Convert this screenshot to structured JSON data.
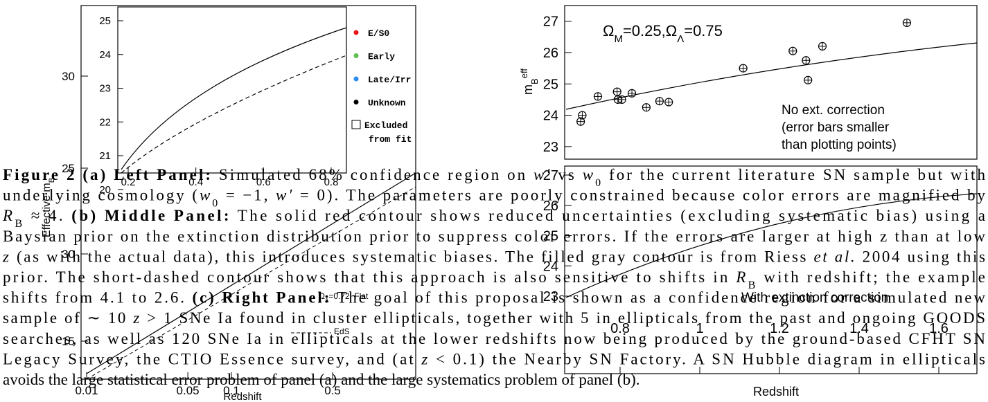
{
  "left_panel": {
    "type": "scatter",
    "y_label": [
      {
        "t": "Effective m"
      },
      {
        "t": "B",
        "sub": true
      }
    ],
    "x_label": "Redshift",
    "xticks": [
      0.01,
      0.05,
      0.1,
      0.5
    ],
    "xscale": "log",
    "yticks": [
      30,
      25
    ],
    "lower_yticks": [
      30,
      15
    ],
    "annotations": [
      [
        {
          "t": "Ω"
        },
        {
          "t": "Λ",
          "sub": true
        },
        {
          "t": "=0.72, Flat"
        }
      ],
      [
        {
          "t": "EdS"
        }
      ]
    ],
    "inset": {
      "xticks": [
        0.2,
        0.4,
        0.6,
        0.8
      ],
      "yticks": [
        25,
        24,
        23,
        22,
        21,
        20
      ],
      "legend": [
        {
          "name": "E/S0",
          "color": "#e8141c"
        },
        {
          "name": "Early",
          "color": "#5dbf4c"
        },
        {
          "name": "Late/Irr",
          "color": "#2a8cf0"
        },
        {
          "name": "Unknown",
          "color": "#000000"
        }
      ],
      "excluded": [
        "Excluded",
        "from fit"
      ]
    }
  },
  "right_top": {
    "type": "scatter",
    "title": [
      {
        "t": "Ω"
      },
      {
        "t": "M",
        "sub": true
      },
      {
        "t": "=0.25,Ω"
      },
      {
        "t": "Λ",
        "sub": true
      },
      {
        "t": "=0.75"
      }
    ],
    "y_label": [
      {
        "t": "m"
      },
      {
        "t": "B",
        "sub": true
      },
      {
        "t": "eff",
        "sup": true
      }
    ],
    "yticks": [
      27,
      26,
      25,
      24,
      23
    ],
    "ylim": [
      22.6,
      27.5
    ],
    "xlim": [
      0.7,
      1.73
    ],
    "note": [
      "No ext. correction",
      "(error bars smaller",
      "than plotting points)"
    ],
    "x": [
      0.74,
      0.744,
      0.783,
      0.831,
      0.833,
      0.843,
      0.868,
      0.904,
      0.937,
      0.96,
      1.146,
      1.27,
      1.303,
      1.308,
      1.344,
      1.555
    ],
    "values": [
      23.8,
      24.0,
      24.6,
      24.75,
      24.5,
      24.5,
      24.7,
      24.25,
      24.45,
      24.42,
      25.5,
      26.05,
      25.75,
      25.12,
      26.2,
      26.95
    ]
  },
  "right_bottom": {
    "type": "scatter",
    "yticks": [
      27,
      26,
      25,
      24,
      23
    ],
    "xticks": [
      0.8,
      1.0,
      1.2,
      1.4,
      1.6
    ],
    "x_label": "Redshift",
    "note": "With extinction correction"
  },
  "caption": [
    [
      {
        "t": "Figure 2 (a) Left Panel:",
        "b": true
      },
      {
        "t": " Simulated 68% confidence region on "
      },
      {
        "t": "w′",
        "i": true
      },
      {
        "t": " vs "
      },
      {
        "t": "w",
        "i": true
      },
      {
        "t": "0",
        "sub": true
      },
      {
        "t": " for the current literature SN sample but with"
      }
    ],
    [
      {
        "t": "underlying cosmology ("
      },
      {
        "t": "w",
        "i": true
      },
      {
        "t": "0",
        "sub": true
      },
      {
        "t": " = −1, "
      },
      {
        "t": "w′",
        "i": true
      },
      {
        "t": " = 0). The parameters are poorly constrained because color errors are magnified by"
      }
    ],
    [
      {
        "t": "R",
        "i": true
      },
      {
        "t": "B",
        "sub": true
      },
      {
        "t": " ≈ 4. "
      },
      {
        "t": "(b) Middle Panel:",
        "b": true
      },
      {
        "t": " The solid red contour shows reduced uncertainties (excluding systematic bias) using a"
      }
    ],
    [
      {
        "t": "Baysian prior on the extinction distribution prior to suppress color errors. If the errors are larger at high z than at low"
      }
    ],
    [
      {
        "t": "z",
        "i": true
      },
      {
        "t": " (as with the actual data), this introduces systematic biases. The filled gray contour is from Riess "
      },
      {
        "t": "et al.",
        "i": true
      },
      {
        "t": " 2004 using this"
      }
    ],
    [
      {
        "t": "prior. The short-dashed contour shows that this approach is also sensitive to shifts in "
      },
      {
        "t": "R",
        "i": true
      },
      {
        "t": "B",
        "sub": true
      },
      {
        "t": " with redshift; the example"
      }
    ],
    [
      {
        "t": "shifts from 4.1 to 2.6. "
      },
      {
        "t": "(c) Right Panel:",
        "b": true
      },
      {
        "t": " The goal of this proposal is shown as a confidence region for a simulated new"
      }
    ],
    [
      {
        "t": "sample of ∼ 10 "
      },
      {
        "t": "z",
        "i": true
      },
      {
        "t": " > 1 SNe Ia found in cluster ellipticals, together with 5 in ellipticals from the past and ongoing GOODS"
      }
    ],
    [
      {
        "t": "searches, as well as 120 SNe Ia in ellipticals at the lower redshifts now being produced by the ground-based CFHT SN"
      }
    ],
    [
      {
        "t": "Legacy Survey, the CTIO Essence survey, and (at "
      },
      {
        "t": "z",
        "i": true
      },
      {
        "t": " < 0.1) the Nearby SN Factory. A SN Hubble diagram in ellipticals"
      }
    ],
    [
      {
        "t": "avoids the large statistical error problem of panel (a) and the large systematics problem of panel (b)."
      }
    ]
  ]
}
